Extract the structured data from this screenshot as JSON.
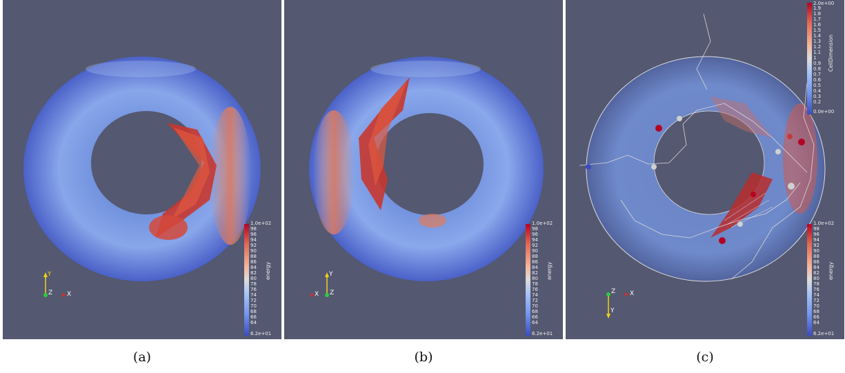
{
  "captions": {
    "a": "(a)",
    "b": "(b)",
    "c": "(c)"
  },
  "energy_colorbar": {
    "title": "energy",
    "max_label": "1.0e+02",
    "min_label": "6.2e+01",
    "ticks": [
      "98",
      "96",
      "94",
      "92",
      "90",
      "88",
      "86",
      "84",
      "82",
      "80",
      "78",
      "76",
      "74",
      "72",
      "70",
      "68",
      "66",
      "64"
    ]
  },
  "celldim_colorbar": {
    "title": "CellDimension",
    "max_label": "2.0e+00",
    "min_label": "0.0e+00",
    "ticks": [
      "1.9",
      "1.8",
      "1.7",
      "1.6",
      "1.5",
      "1.4",
      "1.3",
      "1.2",
      "1.1",
      "1",
      "0.9",
      "0.8",
      "0.7",
      "0.6",
      "0.5",
      "0.4",
      "0.3",
      "0.2"
    ]
  },
  "axes": {
    "a": {
      "up": "Y",
      "center": "Z",
      "right": "X"
    },
    "b": {
      "up": "Y",
      "center": "Z",
      "left": "X"
    },
    "c": {
      "center": "Z",
      "down": "Y",
      "right": "X"
    }
  },
  "colors": {
    "background": "#545870",
    "cold": "#3b4cc0",
    "neutral": "#dddcdc",
    "hot": "#b40426",
    "axis_x": "#d32f2f",
    "axis_y": "#f2d21b",
    "axis_z": "#2ecc40"
  }
}
